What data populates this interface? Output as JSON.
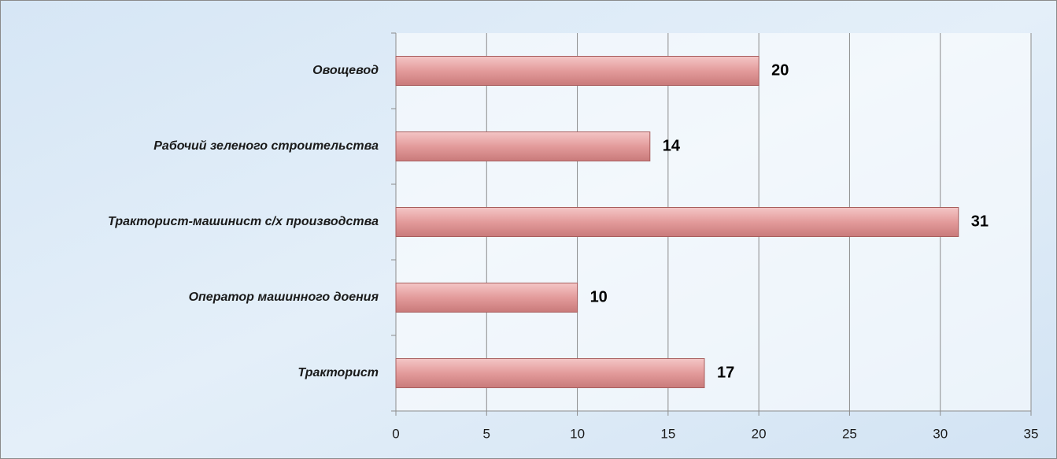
{
  "chart_data": {
    "type": "bar",
    "orientation": "horizontal",
    "categories": [
      "Овощевод",
      "Рабочий зеленого строительства",
      "Тракторист-машинист с/х производства",
      "Оператор машинного доения",
      "Тракторист"
    ],
    "values": [
      20,
      14,
      31,
      10,
      17
    ],
    "color": "#e39b9b",
    "xlim": [
      0,
      35
    ],
    "xticks": [
      0,
      5,
      10,
      15,
      20,
      25,
      30,
      35
    ],
    "grid": true
  }
}
